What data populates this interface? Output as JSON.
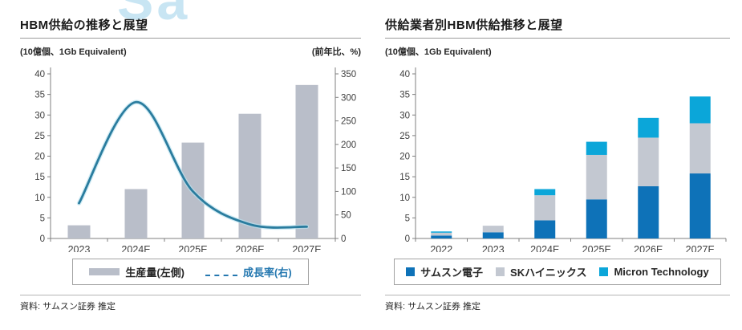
{
  "watermark": "Sa",
  "panels": [
    {
      "title": "HBM供給の推移と展望",
      "unit_left": "(10億個、1Gb Equivalent)",
      "unit_right": "(前年比、%)",
      "source": "資料: サムスン証券 推定",
      "legend": [
        {
          "label": "生産量(左側)",
          "swatch": "bar",
          "swatch_color": "#b9bec9",
          "text_color": "#262626"
        },
        {
          "label": "成長率(右)",
          "swatch": "line",
          "swatch_color": "#2578b0",
          "text_color": "#2578b0"
        }
      ]
    },
    {
      "title": "供給業者別HBM供給推移と展望",
      "unit_left": "(10億個、1Gb Equivalent)",
      "unit_right": "",
      "source": "資料: サムスン証券 推定",
      "legend": [
        {
          "label": "サムスン電子",
          "swatch": "square",
          "swatch_color": "#0e72b8",
          "text_color": "#262626"
        },
        {
          "label": "SKハイニックス",
          "swatch": "square",
          "swatch_color": "#c3c8d1",
          "text_color": "#262626"
        },
        {
          "label": "Micron Technology",
          "swatch": "square",
          "swatch_color": "#0ba6d9",
          "text_color": "#262626"
        }
      ]
    }
  ],
  "chart_data": [
    {
      "type": "bar",
      "subtype": "combo-bar-line",
      "title": "HBM供給の推移と展望",
      "categories": [
        "2023",
        "2024E",
        "2025E",
        "2026E",
        "2027E"
      ],
      "series": [
        {
          "name": "生産量(左側)",
          "type": "bar",
          "axis": "left",
          "color": "#b9bec9",
          "values": [
            3.2,
            12,
            23.3,
            30.3,
            37.3
          ]
        },
        {
          "name": "成長率(右)",
          "type": "line",
          "axis": "right",
          "color": "#2a7c9e",
          "glow_color": "#b9e2ef",
          "values": [
            75,
            290,
            100,
            30,
            25
          ]
        }
      ],
      "y_left": {
        "label": "(10億個、1Gb Equivalent)",
        "min": 0,
        "max": 40,
        "step": 5
      },
      "y_right": {
        "label": "(前年比、%)",
        "min": 0,
        "max": 350,
        "step": 50
      },
      "grid": false,
      "legend_position": "bottom",
      "source": "資料: サムスン証券 推定"
    },
    {
      "type": "bar",
      "subtype": "stacked",
      "title": "供給業者別HBM供給推移と展望",
      "categories": [
        "2022",
        "2023",
        "2024E",
        "2025E",
        "2026E",
        "2027E"
      ],
      "series": [
        {
          "name": "サムスン電子",
          "color": "#0e72b8",
          "values": [
            0.7,
            1.5,
            4.4,
            9.5,
            12.7,
            15.8
          ]
        },
        {
          "name": "SKハイニックス",
          "color": "#c3c8d1",
          "values": [
            0.7,
            1.6,
            6.1,
            10.8,
            11.8,
            12.2
          ]
        },
        {
          "name": "Micron Technology",
          "color": "#0ba6d9",
          "values": [
            0.3,
            0,
            1.5,
            3.2,
            4.8,
            6.5
          ]
        }
      ],
      "totals": [
        1.7,
        3.1,
        12.0,
        23.5,
        29.3,
        34.5
      ],
      "y_left": {
        "label": "(10億個、1Gb Equivalent)",
        "min": 0,
        "max": 40,
        "step": 5
      },
      "grid": false,
      "legend_position": "bottom",
      "source": "資料: サムスン証券 推定"
    }
  ],
  "style": {
    "axis_line_color": "#7f7f7f",
    "axis_text_color": "#404040",
    "bar_gray": "#b9bec9",
    "line_teal": "#2a7c9e",
    "samsung_blue": "#0e72b8",
    "sk_gray": "#c3c8d1",
    "micron_cyan": "#0ba6d9"
  }
}
